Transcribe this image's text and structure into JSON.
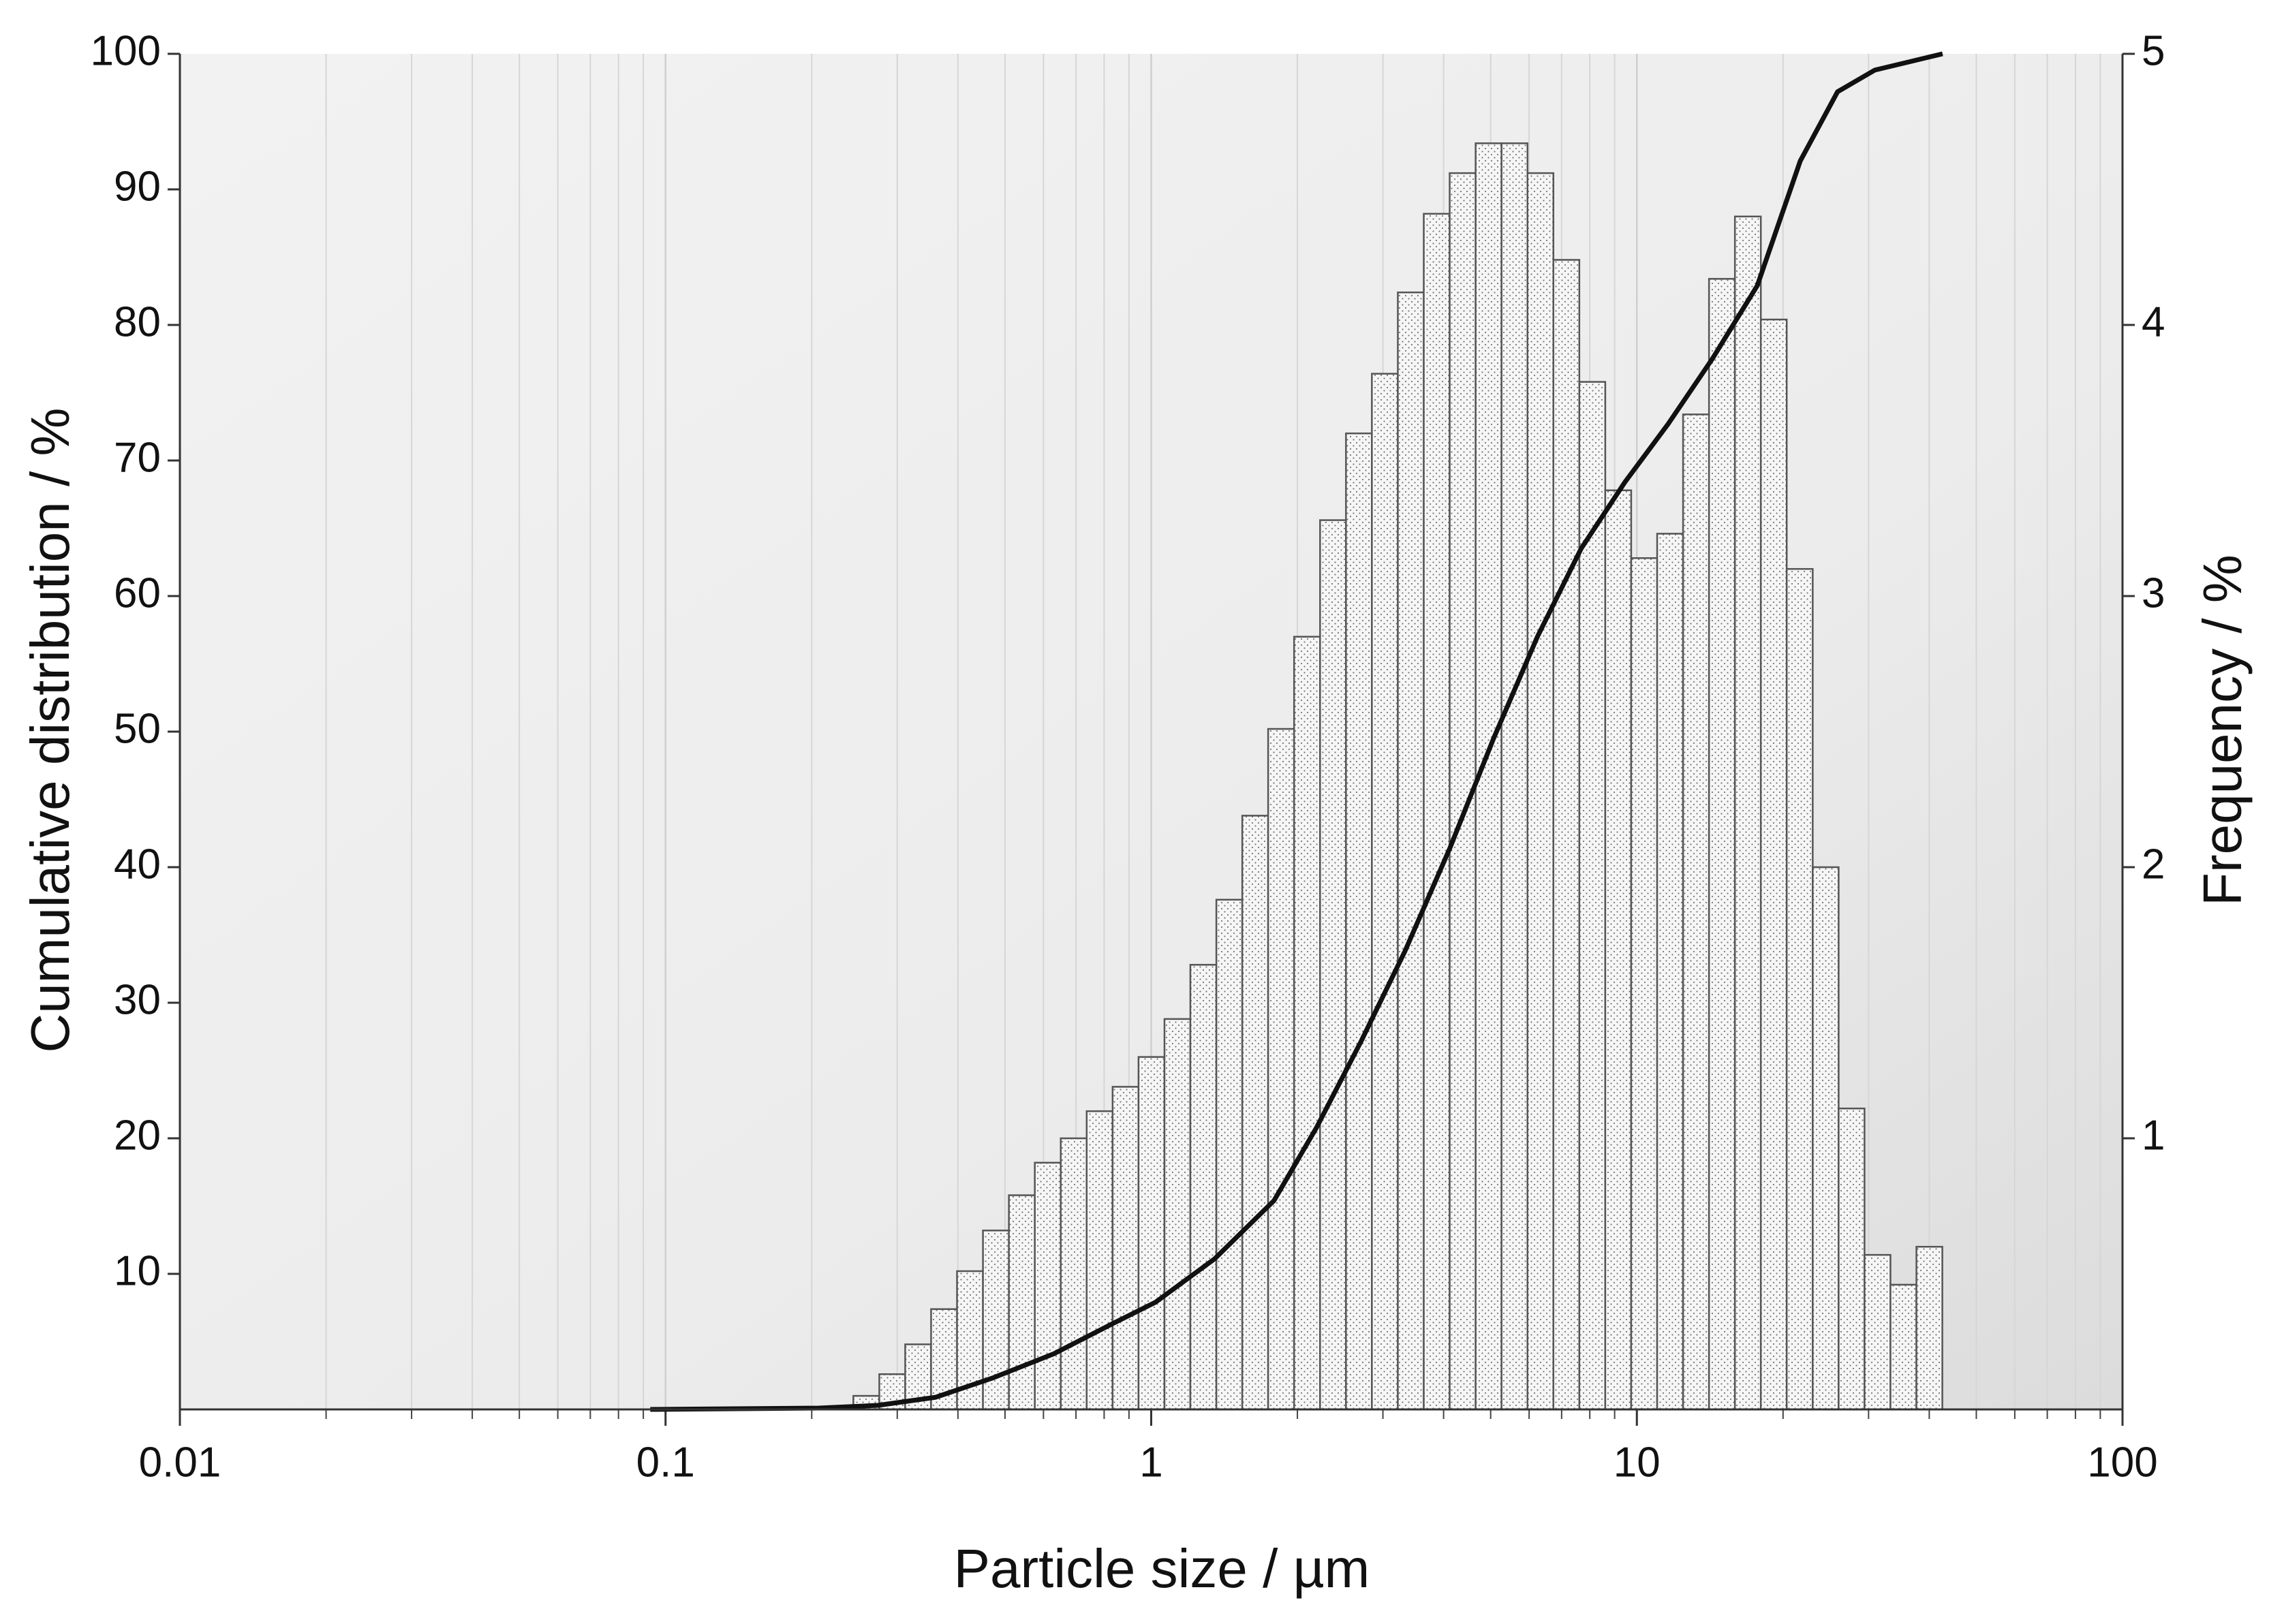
{
  "chart_data": {
    "type": "histogram",
    "xlabel": "Particle size / µm",
    "ylabel": "Cumulative distribution / %",
    "y2label": "Frequency / %",
    "xscale": "log",
    "xlim": [
      0.01,
      100
    ],
    "xticks": [
      0.01,
      0.1,
      1,
      10,
      100
    ],
    "xminorticks": [
      0.02,
      0.03,
      0.04,
      0.05,
      0.06,
      0.07,
      0.08,
      0.09,
      0.2,
      0.3,
      0.4,
      0.5,
      0.6,
      0.7,
      0.8,
      0.9,
      2,
      3,
      4,
      5,
      6,
      7,
      8,
      9,
      20,
      30,
      40,
      50,
      60,
      70,
      80,
      90
    ],
    "ylim": [
      0,
      100
    ],
    "yticks": [
      10,
      20,
      30,
      40,
      50,
      60,
      70,
      80,
      90,
      100
    ],
    "y2lim": [
      0,
      5
    ],
    "y2ticks": [
      1,
      2,
      3,
      4,
      5
    ],
    "grid": true,
    "histogram": {
      "axis": "y2",
      "color": "#f4f4f4",
      "bins": [
        0.2436,
        0.2755,
        0.3115,
        0.3522,
        0.3983,
        0.4504,
        0.5093,
        0.5759,
        0.6513,
        0.7365,
        0.8328,
        0.9417,
        1.065,
        1.204,
        1.362,
        1.54,
        1.741,
        1.969,
        2.227,
        2.518,
        2.847,
        3.22,
        3.641,
        4.117,
        4.656,
        5.265,
        5.954,
        6.732,
        7.613,
        8.609,
        9.735,
        11.01,
        12.45,
        14.08,
        15.92,
        18.0,
        20.35,
        23.02,
        26.03,
        29.43,
        33.28,
        37.64,
        42.56
      ],
      "values": [
        0.05,
        0.13,
        0.24,
        0.37,
        0.51,
        0.66,
        0.79,
        0.91,
        1.0,
        1.1,
        1.19,
        1.3,
        1.44,
        1.64,
        1.88,
        2.19,
        2.51,
        2.85,
        3.28,
        3.6,
        3.82,
        4.12,
        4.41,
        4.56,
        4.67,
        4.67,
        4.56,
        4.24,
        3.79,
        3.39,
        3.14,
        3.23,
        3.67,
        4.17,
        4.4,
        4.02,
        3.1,
        2.0,
        1.11,
        0.57,
        0.46,
        0.6
      ]
    },
    "line": {
      "color": "#111111",
      "x": [
        0.093,
        0.207,
        0.274,
        0.36,
        0.47,
        0.63,
        0.83,
        1.02,
        1.35,
        1.79,
        2.19,
        2.7,
        3.33,
        4.12,
        5.07,
        6.24,
        7.68,
        9.45,
        11.6,
        14.3,
        17.7,
        21.7,
        25.9,
        30.9,
        42.6
      ],
      "values": [
        0,
        0.1,
        0.3,
        0.9,
        2.3,
        4.1,
        6.3,
        7.9,
        11.1,
        15.4,
        20.8,
        27.1,
        33.8,
        41.4,
        49.5,
        57.0,
        63.5,
        68.4,
        72.7,
        77.5,
        82.9,
        92.1,
        97.2,
        98.8,
        100
      ]
    }
  }
}
